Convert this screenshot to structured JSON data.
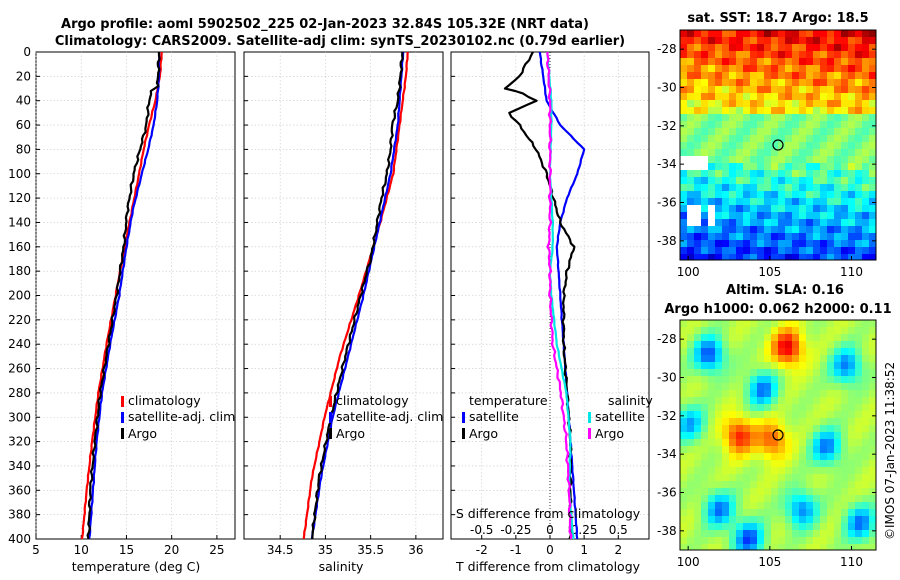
{
  "title": {
    "line1": "Argo profile: aoml 5902502_225 02-Jan-2023 32.84S 105.32E (NRT data)",
    "line2": "Climatology: CARS2009. Satellite-adj clim: synTS_20230102.nc (0.79d earlier)"
  },
  "sst_map": {
    "title": "sat. SST: 18.7 Argo: 18.5"
  },
  "sla_map": {
    "title1": "Altim. SLA: 0.16",
    "title2": "Argo h1000: 0.062 h2000: 0.11"
  },
  "side_label": "©IMOS 07-Jan-2023 11:38:52",
  "colors": {
    "climatology": "#ff0000",
    "satellite": "#0000ff",
    "argo": "#000000",
    "temperature_diff": "#00e5e5",
    "salinity_diff": "#ff00ff"
  },
  "chart_data": [
    {
      "type": "line",
      "name": "temperature",
      "xlabel": "temperature (deg C)",
      "ylabel": "",
      "xlim": [
        5,
        27
      ],
      "ylim": [
        400,
        0
      ],
      "xticks": [
        "5",
        "10",
        "15",
        "20",
        "25"
      ],
      "yticks": [
        "0",
        "20",
        "40",
        "60",
        "80",
        "100",
        "120",
        "140",
        "160",
        "180",
        "200",
        "220",
        "240",
        "260",
        "280",
        "300",
        "320",
        "340",
        "360",
        "380",
        "400"
      ],
      "legend": [
        "climatology",
        "satellite-adj. clim",
        "Argo"
      ],
      "series": [
        {
          "name": "climatology",
          "depth": [
            0,
            20,
            40,
            60,
            80,
            100,
            130,
            160,
            200,
            240,
            280,
            320,
            360,
            400
          ],
          "values": [
            18.9,
            18.7,
            18.2,
            17.5,
            16.9,
            16.4,
            15.6,
            14.8,
            13.8,
            12.8,
            11.9,
            11.2,
            10.6,
            10.1
          ]
        },
        {
          "name": "satellite-adj. clim",
          "depth": [
            0,
            20,
            40,
            60,
            80,
            100,
            130,
            160,
            200,
            240,
            280,
            320,
            360,
            400
          ],
          "values": [
            18.6,
            18.6,
            18.4,
            18.0,
            17.4,
            16.7,
            15.7,
            15.0,
            14.2,
            13.2,
            12.3,
            11.7,
            11.3,
            10.9
          ]
        },
        {
          "name": "Argo",
          "depth": [
            0,
            20,
            28,
            32,
            40,
            60,
            80,
            100,
            130,
            160,
            200,
            240,
            280,
            320,
            360,
            400
          ],
          "values": [
            18.6,
            18.5,
            18.4,
            17.8,
            17.5,
            17.2,
            16.5,
            15.8,
            15.1,
            14.7,
            13.9,
            13.0,
            12.1,
            11.5,
            11.0,
            10.8
          ]
        }
      ]
    },
    {
      "type": "line",
      "name": "salinity",
      "xlabel": "salinity",
      "ylabel": "",
      "xlim": [
        34.1,
        36.3
      ],
      "ylim": [
        400,
        0
      ],
      "xticks": [
        "34.5",
        "35",
        "35.5",
        "36"
      ],
      "legend": [
        "climatology",
        "satellite-adj. clim",
        "Argo"
      ],
      "series": [
        {
          "name": "climatology",
          "depth": [
            0,
            20,
            60,
            100,
            150,
            200,
            250,
            300,
            350,
            400
          ],
          "values": [
            35.91,
            35.89,
            35.82,
            35.75,
            35.57,
            35.37,
            35.16,
            34.99,
            34.85,
            34.76
          ]
        },
        {
          "name": "satellite-adj. clim",
          "depth": [
            0,
            20,
            60,
            100,
            150,
            200,
            250,
            300,
            350,
            400
          ],
          "values": [
            35.86,
            35.84,
            35.8,
            35.72,
            35.57,
            35.42,
            35.25,
            35.08,
            34.95,
            34.85
          ]
        },
        {
          "name": "Argo",
          "depth": [
            0,
            20,
            40,
            60,
            80,
            100,
            120,
            150,
            170,
            180,
            200,
            250,
            300,
            350,
            400
          ],
          "values": [
            35.85,
            35.83,
            35.8,
            35.74,
            35.72,
            35.68,
            35.62,
            35.55,
            35.5,
            35.46,
            35.39,
            35.22,
            35.06,
            34.93,
            34.85
          ]
        }
      ]
    },
    {
      "type": "line",
      "name": "difference",
      "xlabel": "T difference from climatology",
      "top_label": "S difference from climatology",
      "xlim": [
        -2.9,
        2.9
      ],
      "xticks": [
        "-2",
        "-1",
        "0",
        "1",
        "2"
      ],
      "top_ticks": [
        "-0.5",
        "-0.25",
        "0",
        "0.25",
        "0.5"
      ],
      "legend_temperature": {
        "title": "temperature",
        "items": [
          "satellite",
          "Argo"
        ]
      },
      "legend_salinity": {
        "title": "salinity",
        "items": [
          "satellite",
          "Argo"
        ]
      },
      "series": [
        {
          "name": "T satellite",
          "depth": [
            0,
            20,
            40,
            60,
            80,
            100,
            120,
            140,
            160,
            200,
            240,
            280,
            320,
            360,
            400
          ],
          "values": [
            -0.3,
            -0.2,
            -0.1,
            0.3,
            1.0,
            0.8,
            0.5,
            0.3,
            0.2,
            0.3,
            0.4,
            0.5,
            0.6,
            0.7,
            0.8
          ]
        },
        {
          "name": "T Argo",
          "depth": [
            0,
            10,
            20,
            30,
            34,
            40,
            50,
            60,
            80,
            100,
            120,
            140,
            160,
            180,
            200,
            240,
            280,
            320,
            360,
            400
          ],
          "values": [
            -0.5,
            -0.7,
            -0.9,
            -1.3,
            -0.8,
            -0.4,
            -1.2,
            -0.9,
            -0.4,
            -0.1,
            0.1,
            0.3,
            0.7,
            0.5,
            0.4,
            0.4,
            0.5,
            0.6,
            0.6,
            0.6
          ]
        },
        {
          "name": "S satellite",
          "depth": [
            0,
            40,
            60,
            100,
            140,
            160,
            180,
            200,
            240,
            280,
            320,
            360,
            400
          ],
          "values": [
            -0.02,
            0.01,
            0.01,
            0.0,
            0.02,
            0.02,
            0.0,
            0.01,
            0.05,
            0.12,
            0.15,
            0.14,
            0.17
          ]
        },
        {
          "name": "S Argo",
          "depth": [
            0,
            40,
            60,
            100,
            140,
            160,
            180,
            200,
            240,
            280,
            320,
            360,
            400
          ],
          "values": [
            -0.02,
            0.0,
            0.0,
            0.0,
            0.0,
            -0.01,
            0.0,
            0.0,
            0.02,
            0.08,
            0.12,
            0.14,
            0.15
          ]
        }
      ]
    },
    {
      "type": "heatmap",
      "name": "sat-sst-map",
      "title": "sat. SST: 18.7 Argo: 18.5",
      "xlim": [
        99.5,
        111.5
      ],
      "ylim": [
        -39,
        -27
      ],
      "xticks": [
        "100",
        "105",
        "110"
      ],
      "yticks": [
        "-28",
        "-30",
        "-32",
        "-34",
        "-36",
        "-38"
      ],
      "marker": {
        "lon": 105.32,
        "lat": -32.84
      }
    },
    {
      "type": "heatmap",
      "name": "sla-map",
      "title": "Altim. SLA: 0.16",
      "xlim": [
        99.5,
        111.5
      ],
      "ylim": [
        -39,
        -27
      ],
      "xticks": [
        "100",
        "105",
        "110"
      ],
      "yticks": [
        "-28",
        "-30",
        "-32",
        "-34",
        "-36",
        "-38"
      ],
      "marker": {
        "lon": 105.32,
        "lat": -32.84
      }
    }
  ]
}
